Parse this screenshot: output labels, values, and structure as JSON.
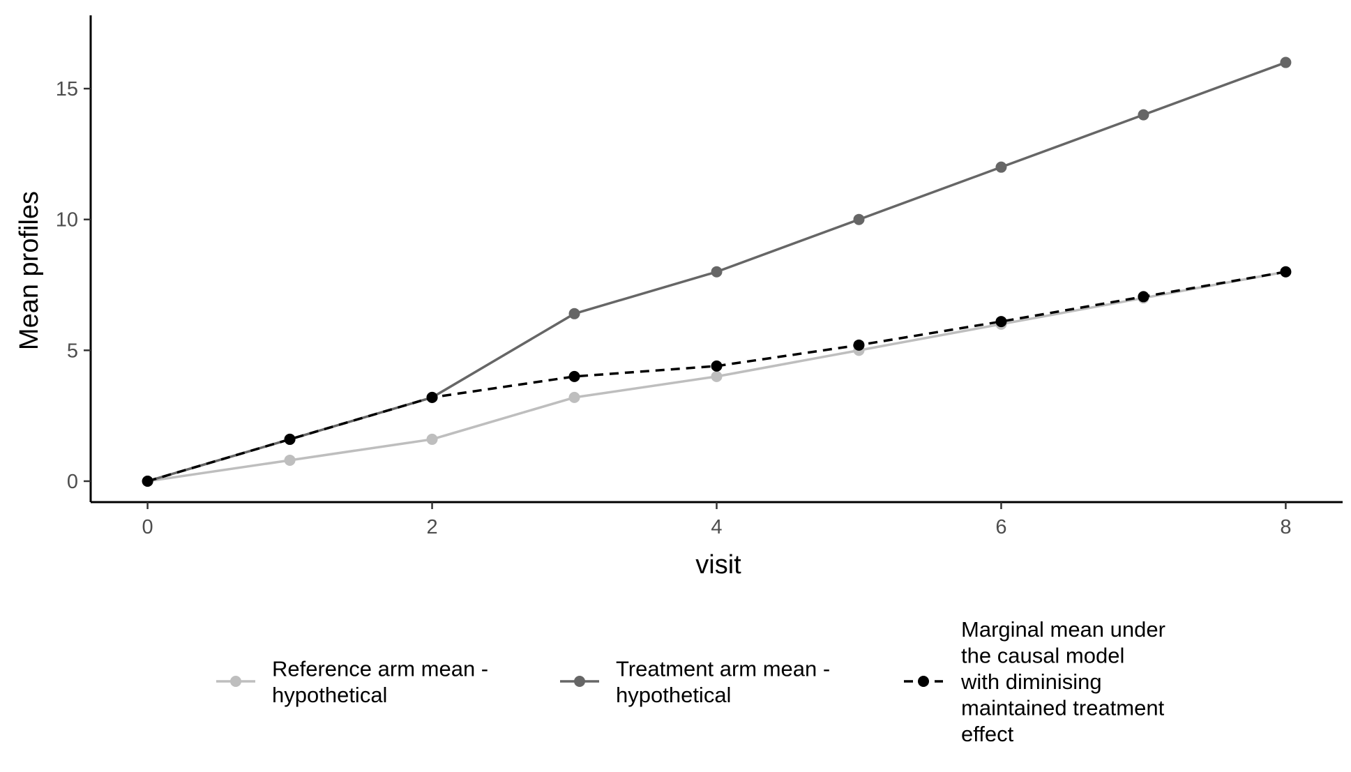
{
  "chart_data": {
    "type": "line",
    "title": "",
    "xlabel": "visit",
    "ylabel": "Mean profiles",
    "xlim": [
      -0.4,
      8.4
    ],
    "ylim": [
      -0.8,
      17.8
    ],
    "x_ticks": [
      0,
      2,
      4,
      6,
      8
    ],
    "y_ticks": [
      0,
      5,
      10,
      15
    ],
    "grid": false,
    "legend_position": "bottom",
    "x": [
      0,
      1,
      2,
      3,
      4,
      5,
      6,
      7,
      8
    ],
    "series": [
      {
        "id": "reference",
        "name": "Reference arm mean - hypothetical",
        "legend_lines": [
          "Reference arm mean -",
          "hypothetical"
        ],
        "color": "#bebebe",
        "line_style": "solid",
        "values": [
          0,
          0.8,
          1.6,
          3.2,
          4.0,
          5.0,
          6.0,
          7.0,
          8.0
        ]
      },
      {
        "id": "treatment",
        "name": "Treatment arm mean - hypothetical",
        "legend_lines": [
          "Treatment arm mean -",
          "hypothetical"
        ],
        "color": "#666666",
        "line_style": "solid",
        "values": [
          0,
          1.6,
          3.2,
          6.4,
          8.0,
          10.0,
          12.0,
          14.0,
          16.0
        ]
      },
      {
        "id": "marginal",
        "name": "Marginal mean under the causal model with diminising maintained treatment effect",
        "legend_lines": [
          "Marginal mean under",
          "the causal model",
          "with diminising",
          "maintained treatment",
          "effect"
        ],
        "color": "#000000",
        "line_style": "dashed",
        "values": [
          0,
          1.6,
          3.2,
          4.0,
          4.4,
          5.2,
          6.1,
          7.05,
          8.0
        ]
      }
    ]
  }
}
